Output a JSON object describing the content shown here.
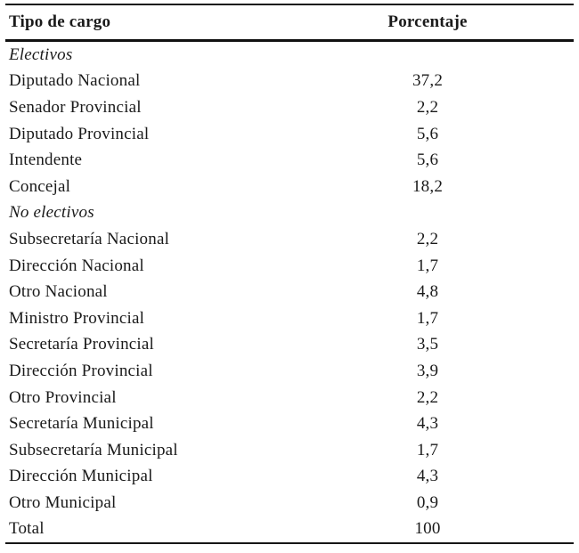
{
  "colors": {
    "text": "#1a1a1a",
    "rule": "#161616",
    "background": "#ffffff"
  },
  "table": {
    "header": {
      "col1": "Tipo de cargo",
      "col2": "Porcentaje"
    },
    "rows": [
      {
        "label": "Electivos",
        "value": "",
        "style": "section"
      },
      {
        "label": "Diputado Nacional",
        "value": "37,2",
        "style": "data"
      },
      {
        "label": "Senador Provincial",
        "value": "2,2",
        "style": "data"
      },
      {
        "label": "Diputado Provincial",
        "value": "5,6",
        "style": "data"
      },
      {
        "label": "Intendente",
        "value": "5,6",
        "style": "data"
      },
      {
        "label": "Concejal",
        "value": "18,2",
        "style": "data"
      },
      {
        "label": "No electivos",
        "value": "",
        "style": "section"
      },
      {
        "label": "Subsecretaría Nacional",
        "value": "2,2",
        "style": "data"
      },
      {
        "label": "Dirección Nacional",
        "value": "1,7",
        "style": "data"
      },
      {
        "label": "Otro Nacional",
        "value": "4,8",
        "style": "data"
      },
      {
        "label": "Ministro Provincial",
        "value": "1,7",
        "style": "data"
      },
      {
        "label": "Secretaría Provincial",
        "value": "3,5",
        "style": "data"
      },
      {
        "label": "Dirección Provincial",
        "value": "3,9",
        "style": "data"
      },
      {
        "label": "Otro Provincial",
        "value": "2,2",
        "style": "data"
      },
      {
        "label": "Secretaría Municipal",
        "value": "4,3",
        "style": "data"
      },
      {
        "label": "Subsecretaría Municipal",
        "value": "1,7",
        "style": "data"
      },
      {
        "label": "Dirección Municipal",
        "value": "4,3",
        "style": "data"
      },
      {
        "label": "Otro Municipal",
        "value": "0,9",
        "style": "data"
      },
      {
        "label": "Total",
        "value": "100",
        "style": "data"
      }
    ]
  },
  "chart_data": {
    "type": "table",
    "columns": [
      "Tipo de cargo",
      "Porcentaje"
    ],
    "sections": [
      {
        "name": "Electivos",
        "rows": [
          [
            "Diputado Nacional",
            37.2
          ],
          [
            "Senador Provincial",
            2.2
          ],
          [
            "Diputado Provincial",
            5.6
          ],
          [
            "Intendente",
            5.6
          ],
          [
            "Concejal",
            18.2
          ]
        ]
      },
      {
        "name": "No electivos",
        "rows": [
          [
            "Subsecretaría Nacional",
            2.2
          ],
          [
            "Dirección Nacional",
            1.7
          ],
          [
            "Otro Nacional",
            4.8
          ],
          [
            "Ministro Provincial",
            1.7
          ],
          [
            "Secretaría Provincial",
            3.5
          ],
          [
            "Dirección Provincial",
            3.9
          ],
          [
            "Otro Provincial",
            2.2
          ],
          [
            "Secretaría Municipal",
            4.3
          ],
          [
            "Subsecretaría Municipal",
            1.7
          ],
          [
            "Dirección Municipal",
            4.3
          ],
          [
            "Otro Municipal",
            0.9
          ]
        ]
      }
    ],
    "total": [
      "Total",
      100
    ]
  }
}
